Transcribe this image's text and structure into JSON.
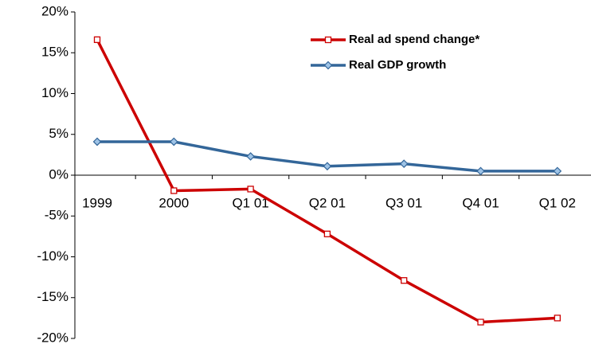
{
  "chart_data": {
    "type": "line",
    "categories": [
      "1999",
      "2000",
      "Q1 01",
      "Q2 01",
      "Q3 01",
      "Q4 01",
      "Q1 02"
    ],
    "series": [
      {
        "name": "Real ad spend change*",
        "color": "#cc0000",
        "marker": "square",
        "values": [
          16.6,
          -1.9,
          -1.7,
          -7.2,
          -12.9,
          -18.0,
          -17.5
        ]
      },
      {
        "name": "Real GDP growth",
        "color": "#336699",
        "marker": "diamond",
        "values": [
          4.1,
          4.1,
          2.3,
          1.1,
          1.4,
          0.5,
          0.5
        ]
      }
    ],
    "ylim": [
      -20,
      20
    ],
    "yticks": [
      {
        "value": -20,
        "label": "-20%"
      },
      {
        "value": -15,
        "label": "-15%"
      },
      {
        "value": -10,
        "label": "-10%"
      },
      {
        "value": -5,
        "label": "-5%"
      },
      {
        "value": 0,
        "label": "0%"
      },
      {
        "value": 5,
        "label": "5%"
      },
      {
        "value": 10,
        "label": "10%"
      },
      {
        "value": 15,
        "label": "15%"
      },
      {
        "value": 20,
        "label": "20%"
      }
    ],
    "grid": false,
    "legend": "upper right"
  }
}
